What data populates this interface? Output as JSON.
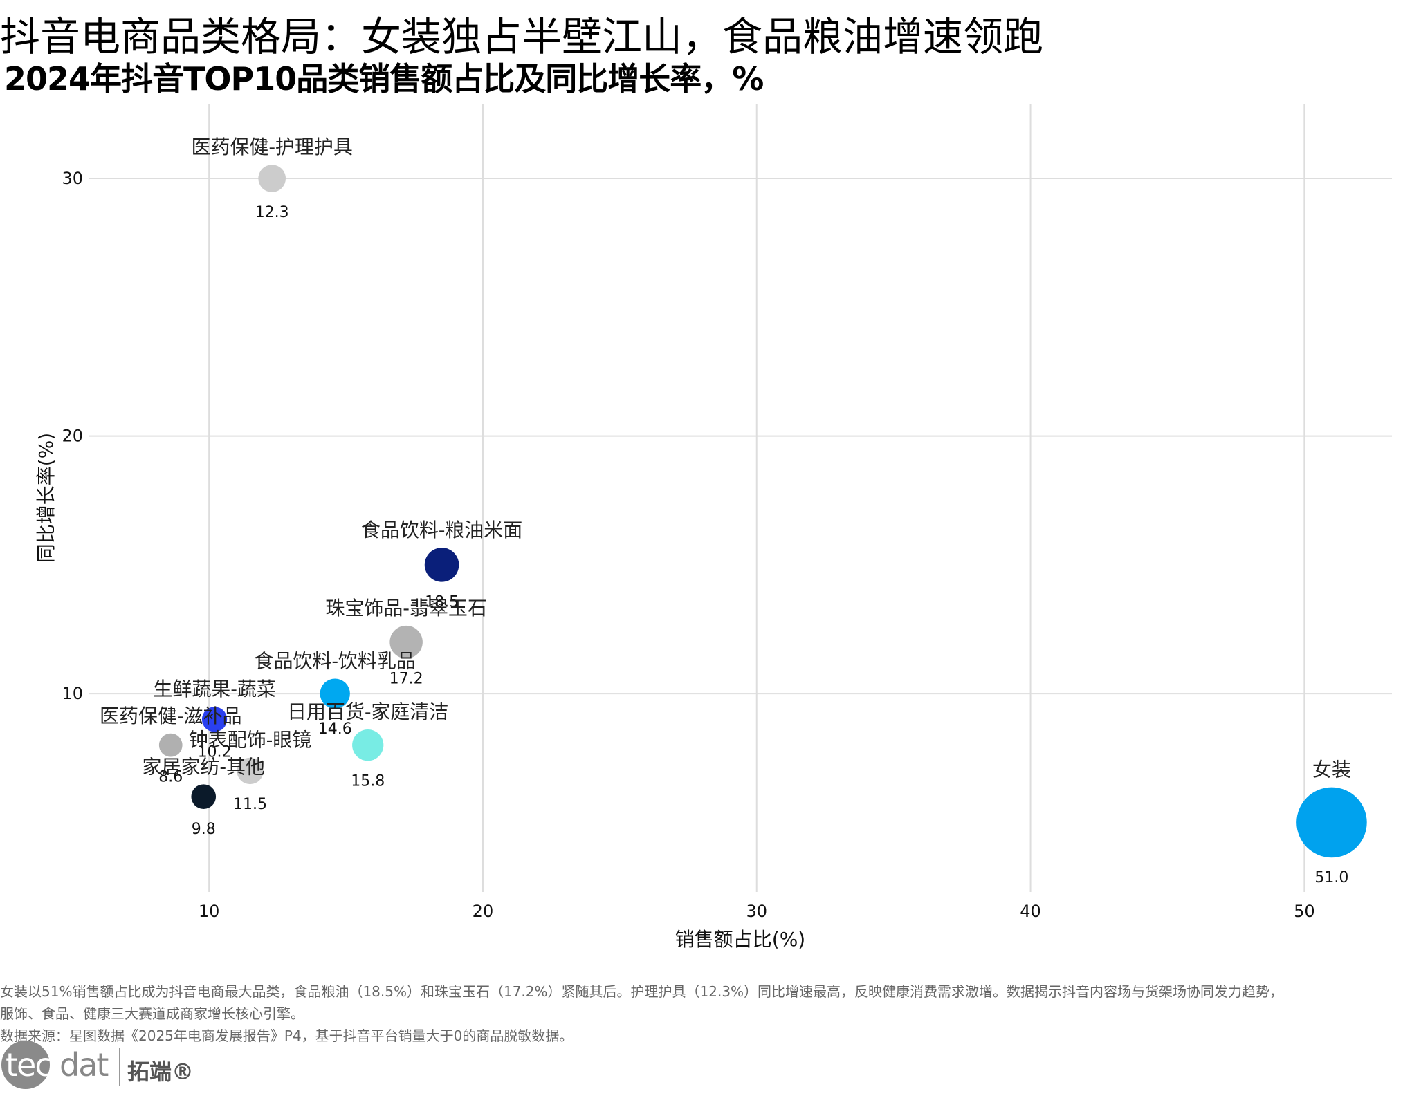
{
  "title": "抖音电商品类格局：女装独占半壁江山，食品粮油增速领跑",
  "subtitle": "2024年抖音TOP10品类销售额占比及同比增长率，%",
  "notes": [
    "女装以51%销售额占比成为抖音电商最大品类，食品粮油（18.5%）和珠宝玉石（17.2%）紧随其后。护理护具（12.3%）同比增速最高，反映健康消费需求激增。数据揭示抖音内容场与货架场协同发力趋势，",
    "服饰、食品、健康三大赛道成商家增长核心引擎。",
    "数据来源：星图数据《2025年电商发展报告》P4，基于抖音平台销量大于0的商品脱敏数据。"
  ],
  "logo": {
    "tec": "tec",
    "dat": "dat",
    "cn": "拓端®"
  },
  "chart_data": {
    "type": "scatter",
    "xlabel": "销售额占比(%)",
    "ylabel": "同比增长率(%)",
    "xlim": [
      5.6,
      53.2
    ],
    "ylim": [
      2.3,
      32.9
    ],
    "xticks": [
      10,
      20,
      30,
      40,
      50
    ],
    "yticks": [
      10,
      20,
      30
    ],
    "grid": true,
    "points": [
      {
        "name": "医药保健-护理护具",
        "x": 12.3,
        "y": 30.0,
        "label": "12.3",
        "color": "#cccccc"
      },
      {
        "name": "食品饮料-粮油米面",
        "x": 18.5,
        "y": 15.0,
        "label": "18.5",
        "color": "#0a1f7a"
      },
      {
        "name": "珠宝饰品-翡翠玉石",
        "x": 17.2,
        "y": 12.0,
        "label": "17.2",
        "color": "#b3b3b3"
      },
      {
        "name": "食品饮料-饮料乳品",
        "x": 14.6,
        "y": 10.0,
        "label": "14.6",
        "color": "#00a8f0"
      },
      {
        "name": "生鲜蔬果-蔬菜",
        "x": 10.2,
        "y": 9.0,
        "label": "10.2",
        "color": "#2a40f0"
      },
      {
        "name": "医药保健-滋补品",
        "x": 8.6,
        "y": 8.0,
        "label": "8.6",
        "color": "#b0b0b0"
      },
      {
        "name": "日用百货-家庭清洁",
        "x": 15.8,
        "y": 8.0,
        "label": "15.8",
        "color": "#78ece4"
      },
      {
        "name": "钟表配饰-眼镜",
        "x": 11.5,
        "y": 7.0,
        "label": "11.5",
        "color": "#cccccc"
      },
      {
        "name": "家居家纺-其他",
        "x": 9.8,
        "y": 6.0,
        "label": "9.8",
        "color": "#0b1a2a"
      },
      {
        "name": "女装",
        "x": 51.0,
        "y": 5.0,
        "label": "51.0",
        "color": "#00a2ee"
      }
    ]
  }
}
